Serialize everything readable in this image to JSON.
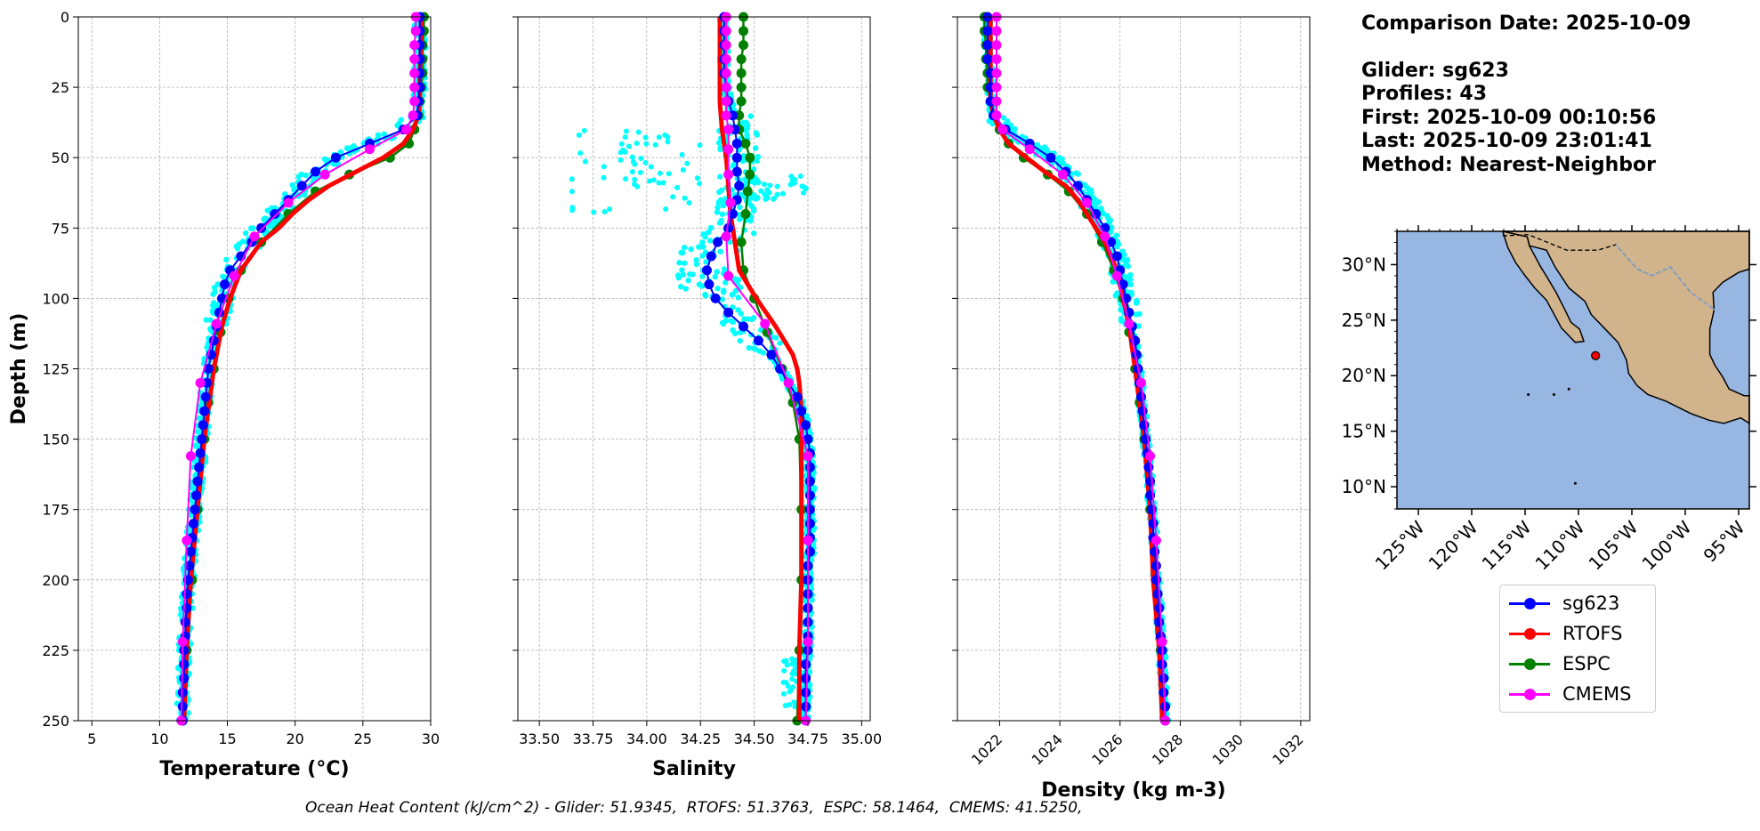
{
  "colors": {
    "glider": "#0000ff",
    "rtofs": "#ff0000",
    "espc": "#008000",
    "cmems": "#ff00ff",
    "scatter": "#00ffff",
    "ocean": "#97b6e1",
    "land": "#d2b48c"
  },
  "info": {
    "date_line": "Comparison Date: 2025-10-09",
    "glider_line": "Glider: sg623",
    "profiles_line": "Profiles: 43",
    "first_line": "First: 2025-10-09 00:10:56",
    "last_line": "Last: 2025-10-09 23:01:41",
    "method_line": "Method: Nearest-Neighbor"
  },
  "legend": [
    {
      "label": "sg623",
      "color": "#0000ff"
    },
    {
      "label": "RTOFS",
      "color": "#ff0000"
    },
    {
      "label": "ESPC",
      "color": "#008000"
    },
    {
      "label": "CMEMS",
      "color": "#ff00ff"
    }
  ],
  "footer": {
    "ohc_text": "Ocean Heat Content (kJ/cm^2) - Glider: 51.9345,  RTOFS: 51.3763,  ESPC: 58.1464,  CMEMS: 41.5250,"
  },
  "chart_data": [
    {
      "type": "line",
      "xlabel": "Temperature (°C)",
      "ylabel": "Depth (m)",
      "xlim": [
        4,
        30
      ],
      "ylim": [
        250,
        0
      ],
      "xticks": [
        "5",
        "10",
        "15",
        "20",
        "25",
        "30"
      ],
      "yticks": [
        "0",
        "25",
        "50",
        "75",
        "100",
        "125",
        "150",
        "175",
        "200",
        "225",
        "250"
      ],
      "grid": true,
      "series": [
        {
          "name": "sg623",
          "depth": [
            0,
            5,
            10,
            15,
            20,
            25,
            30,
            35,
            40,
            45,
            50,
            55,
            60,
            65,
            70,
            75,
            80,
            85,
            90,
            95,
            100,
            105,
            110,
            115,
            120,
            125,
            130,
            135,
            140,
            145,
            150,
            155,
            160,
            165,
            170,
            175,
            180,
            185,
            190,
            195,
            200,
            205,
            210,
            215,
            220,
            225,
            230,
            235,
            240,
            245,
            250
          ],
          "values": [
            29.2,
            29.2,
            29.2,
            29.2,
            29.2,
            29.2,
            29.1,
            29.0,
            28.0,
            25.5,
            23.0,
            21.5,
            20.5,
            19.5,
            18.5,
            17.5,
            16.8,
            16.0,
            15.2,
            14.8,
            14.6,
            14.4,
            14.2,
            14.0,
            13.8,
            13.6,
            13.5,
            13.4,
            13.3,
            13.2,
            13.1,
            13.0,
            12.9,
            12.8,
            12.7,
            12.6,
            12.5,
            12.4,
            12.3,
            12.2,
            12.1,
            12.0,
            12.0,
            11.9,
            11.9,
            11.8,
            11.8,
            11.8,
            11.7,
            11.7,
            11.7
          ]
        },
        {
          "name": "RTOFS",
          "depth": [
            0,
            10,
            20,
            30,
            35,
            40,
            45,
            50,
            55,
            60,
            65,
            70,
            75,
            80,
            90,
            100,
            110,
            125,
            150,
            175,
            200,
            225,
            250
          ],
          "values": [
            29.3,
            29.3,
            29.2,
            29.2,
            29.1,
            28.7,
            28.0,
            26.5,
            24.5,
            22.5,
            21.0,
            19.8,
            18.8,
            17.5,
            16.0,
            15.2,
            14.6,
            14.0,
            13.3,
            12.8,
            12.3,
            12.0,
            11.8
          ]
        },
        {
          "name": "ESPC",
          "depth": [
            0,
            5,
            10,
            15,
            20,
            25,
            30,
            35,
            40,
            45,
            50,
            56,
            62,
            70,
            80,
            90,
            100,
            112,
            125,
            137,
            150,
            175,
            200,
            225,
            250
          ],
          "values": [
            29.5,
            29.5,
            29.4,
            29.4,
            29.4,
            29.3,
            29.2,
            29.1,
            28.8,
            28.4,
            27.0,
            24.0,
            21.5,
            19.5,
            17.5,
            16.0,
            15.1,
            14.5,
            14.0,
            13.6,
            13.3,
            12.8,
            12.4,
            12.0,
            11.7
          ]
        },
        {
          "name": "CMEMS",
          "depth": [
            0,
            5,
            10,
            15,
            20,
            25,
            30,
            35,
            40,
            47,
            56,
            66,
            78,
            92,
            109,
            130,
            156,
            186,
            222,
            250
          ],
          "values": [
            28.9,
            28.9,
            28.8,
            28.8,
            28.8,
            28.8,
            28.8,
            28.7,
            28.2,
            25.5,
            22.2,
            19.5,
            17.0,
            15.5,
            14.2,
            13.0,
            12.3,
            12.0,
            11.7,
            11.6
          ]
        }
      ]
    },
    {
      "type": "line",
      "xlabel": "Salinity",
      "ylim": [
        250,
        0
      ],
      "xlim": [
        33.4,
        35.04
      ],
      "xticks": [
        "33.50",
        "33.75",
        "34.00",
        "34.25",
        "34.50",
        "34.75",
        "35.00"
      ],
      "grid": true,
      "series": [
        {
          "name": "sg623",
          "depth": [
            0,
            5,
            10,
            15,
            20,
            25,
            30,
            35,
            40,
            45,
            50,
            55,
            60,
            65,
            70,
            75,
            80,
            85,
            90,
            95,
            100,
            105,
            110,
            115,
            120,
            125,
            130,
            135,
            140,
            145,
            150,
            155,
            160,
            165,
            170,
            175,
            180,
            185,
            190,
            195,
            200,
            205,
            210,
            215,
            220,
            225,
            230,
            235,
            240,
            245,
            250
          ],
          "values": [
            34.36,
            34.36,
            34.36,
            34.36,
            34.36,
            34.37,
            34.38,
            34.4,
            34.41,
            34.42,
            34.42,
            34.42,
            34.43,
            34.42,
            34.4,
            34.38,
            34.33,
            34.3,
            34.28,
            34.29,
            34.32,
            34.38,
            34.45,
            34.52,
            34.58,
            34.62,
            34.66,
            34.7,
            34.72,
            34.74,
            34.75,
            34.76,
            34.76,
            34.76,
            34.76,
            34.76,
            34.76,
            34.76,
            34.76,
            34.75,
            34.75,
            34.75,
            34.75,
            34.75,
            34.75,
            34.75,
            34.74,
            34.74,
            34.74,
            34.74,
            34.74
          ]
        },
        {
          "name": "RTOFS",
          "depth": [
            0,
            10,
            20,
            30,
            40,
            50,
            60,
            70,
            80,
            90,
            100,
            110,
            120,
            125,
            130,
            140,
            150,
            175,
            200,
            225,
            250
          ],
          "values": [
            34.34,
            34.34,
            34.34,
            34.34,
            34.35,
            34.37,
            34.38,
            34.39,
            34.41,
            34.43,
            34.51,
            34.6,
            34.68,
            34.7,
            34.71,
            34.72,
            34.72,
            34.72,
            34.72,
            34.71,
            34.71
          ]
        },
        {
          "name": "ESPC",
          "depth": [
            0,
            5,
            10,
            15,
            20,
            25,
            30,
            35,
            40,
            45,
            50,
            56,
            62,
            70,
            80,
            90,
            100,
            112,
            125,
            137,
            150,
            175,
            200,
            225,
            250
          ],
          "values": [
            34.45,
            34.45,
            34.45,
            34.44,
            34.44,
            34.44,
            34.44,
            34.43,
            34.43,
            34.46,
            34.48,
            34.48,
            34.47,
            34.46,
            34.44,
            34.45,
            34.5,
            34.56,
            34.63,
            34.68,
            34.71,
            34.72,
            34.72,
            34.71,
            34.7
          ]
        },
        {
          "name": "CMEMS",
          "depth": [
            0,
            5,
            10,
            15,
            20,
            25,
            30,
            35,
            40,
            47,
            56,
            66,
            78,
            92,
            109,
            130,
            156,
            186,
            222,
            250
          ],
          "values": [
            34.37,
            34.37,
            34.37,
            34.37,
            34.37,
            34.37,
            34.37,
            34.37,
            34.38,
            34.38,
            34.38,
            34.39,
            34.37,
            34.38,
            34.55,
            34.66,
            34.75,
            34.75,
            34.75,
            34.74
          ]
        }
      ]
    },
    {
      "type": "line",
      "xlabel": "Density (kg m-3)",
      "ylim": [
        250,
        0
      ],
      "xlim": [
        1020.6,
        1032.3
      ],
      "xticks": [
        "1022",
        "1024",
        "1026",
        "1028",
        "1030",
        "1032"
      ],
      "grid": true,
      "series": [
        {
          "name": "sg623",
          "depth": [
            0,
            5,
            10,
            15,
            20,
            25,
            30,
            35,
            40,
            45,
            50,
            55,
            60,
            65,
            70,
            75,
            80,
            85,
            90,
            95,
            100,
            105,
            110,
            115,
            120,
            125,
            130,
            135,
            140,
            145,
            150,
            155,
            160,
            165,
            170,
            175,
            180,
            185,
            190,
            195,
            200,
            205,
            210,
            215,
            220,
            225,
            230,
            235,
            240,
            245,
            250
          ],
          "values": [
            1021.6,
            1021.6,
            1021.6,
            1021.6,
            1021.7,
            1021.7,
            1021.7,
            1021.8,
            1022.2,
            1023.0,
            1023.7,
            1024.2,
            1024.6,
            1024.9,
            1025.2,
            1025.5,
            1025.7,
            1025.9,
            1026.0,
            1026.1,
            1026.2,
            1026.3,
            1026.4,
            1026.5,
            1026.55,
            1026.6,
            1026.65,
            1026.7,
            1026.75,
            1026.8,
            1026.85,
            1026.9,
            1026.95,
            1027.0,
            1027.0,
            1027.05,
            1027.1,
            1027.1,
            1027.15,
            1027.2,
            1027.2,
            1027.25,
            1027.3,
            1027.3,
            1027.35,
            1027.4,
            1027.4,
            1027.45,
            1027.45,
            1027.5,
            1027.5
          ]
        },
        {
          "name": "RTOFS",
          "depth": [
            0,
            10,
            20,
            30,
            35,
            40,
            45,
            50,
            55,
            60,
            65,
            70,
            75,
            80,
            90,
            100,
            110,
            125,
            150,
            175,
            200,
            225,
            250
          ],
          "values": [
            1021.7,
            1021.7,
            1021.7,
            1021.7,
            1021.8,
            1022.0,
            1022.3,
            1022.9,
            1023.5,
            1024.2,
            1024.6,
            1024.9,
            1025.2,
            1025.5,
            1025.9,
            1026.1,
            1026.3,
            1026.5,
            1026.8,
            1027.0,
            1027.1,
            1027.3,
            1027.4
          ]
        },
        {
          "name": "ESPC",
          "depth": [
            0,
            5,
            10,
            15,
            20,
            25,
            30,
            35,
            40,
            45,
            50,
            56,
            62,
            70,
            80,
            90,
            100,
            112,
            125,
            137,
            150,
            175,
            200,
            225,
            250
          ],
          "values": [
            1021.5,
            1021.5,
            1021.55,
            1021.55,
            1021.6,
            1021.6,
            1021.7,
            1021.8,
            1022.0,
            1022.3,
            1022.8,
            1023.6,
            1024.3,
            1024.9,
            1025.4,
            1025.8,
            1026.1,
            1026.3,
            1026.5,
            1026.65,
            1026.8,
            1027.0,
            1027.2,
            1027.35,
            1027.5
          ]
        },
        {
          "name": "CMEMS",
          "depth": [
            0,
            5,
            10,
            15,
            20,
            25,
            30,
            35,
            40,
            47,
            56,
            66,
            78,
            92,
            109,
            130,
            156,
            186,
            222,
            250
          ],
          "values": [
            1021.9,
            1021.9,
            1021.9,
            1021.9,
            1021.9,
            1021.9,
            1021.9,
            1021.9,
            1022.1,
            1023.0,
            1024.1,
            1024.9,
            1025.5,
            1025.9,
            1026.3,
            1026.7,
            1027.0,
            1027.2,
            1027.4,
            1027.5
          ]
        }
      ]
    },
    {
      "type": "map",
      "lon_range": [
        -127,
        -94
      ],
      "lat_range": [
        8,
        33
      ],
      "xticks": [
        "125°W",
        "120°W",
        "115°W",
        "110°W",
        "105°W",
        "100°W",
        "95°W"
      ],
      "yticks": [
        "30°N",
        "25°N",
        "20°N",
        "15°N",
        "10°N"
      ],
      "glider_position": {
        "lon": -108.4,
        "lat": 21.8
      }
    }
  ]
}
